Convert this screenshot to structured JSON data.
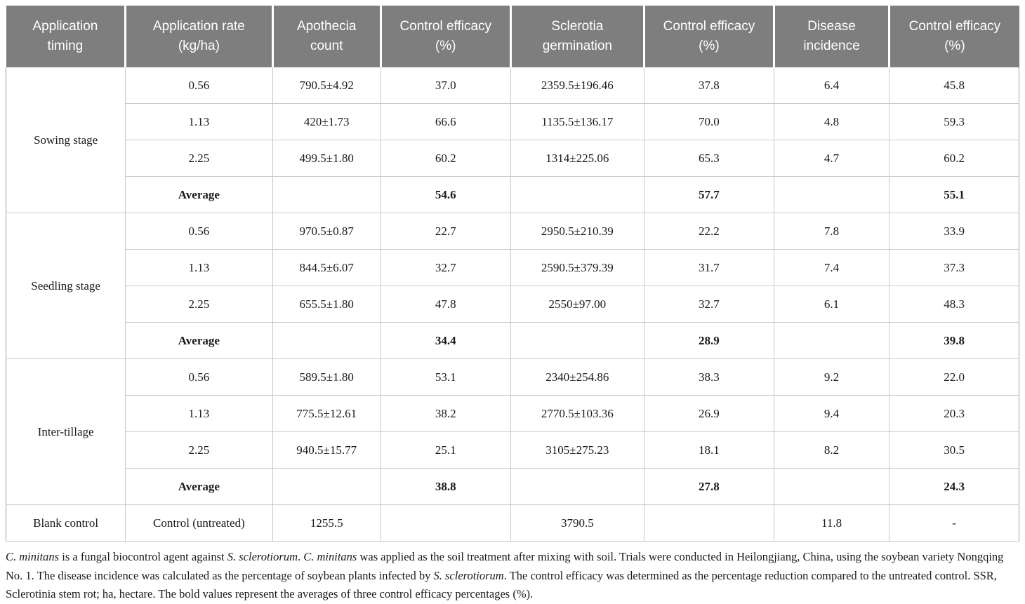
{
  "table": {
    "columns": [
      "Application timing",
      "Application rate (kg/ha)",
      "Apothecia count",
      "Control efficacy (%)",
      "Sclerotia germination",
      "Control efficacy (%)",
      "Disease incidence",
      "Control efficacy (%)"
    ],
    "column_keys": [
      "rate",
      "apothecia",
      "efficacy1",
      "sclerotia",
      "efficacy2",
      "incidence",
      "efficacy3"
    ],
    "header_bg": "#7e7e7e",
    "header_text_color": "#ffffff",
    "groups": [
      {
        "timing": "Sowing stage",
        "rows": [
          {
            "rate": "0.56",
            "apothecia": "790.5±4.92",
            "efficacy1": "37.0",
            "sclerotia": "2359.5±196.46",
            "efficacy2": "37.8",
            "incidence": "6.4",
            "efficacy3": "45.8"
          },
          {
            "rate": "1.13",
            "apothecia": "420±1.73",
            "efficacy1": "66.6",
            "sclerotia": "1135.5±136.17",
            "efficacy2": "70.0",
            "incidence": "4.8",
            "efficacy3": "59.3"
          },
          {
            "rate": "2.25",
            "apothecia": "499.5±1.80",
            "efficacy1": "60.2",
            "sclerotia": "1314±225.06",
            "efficacy2": "65.3",
            "incidence": "4.7",
            "efficacy3": "60.2"
          },
          {
            "rate": "Average",
            "bold": true,
            "apothecia": "",
            "efficacy1": "54.6",
            "sclerotia": "",
            "efficacy2": "57.7",
            "incidence": "",
            "efficacy3": "55.1"
          }
        ]
      },
      {
        "timing": "Seedling stage",
        "rows": [
          {
            "rate": "0.56",
            "apothecia": "970.5±0.87",
            "efficacy1": "22.7",
            "sclerotia": "2950.5±210.39",
            "efficacy2": "22.2",
            "incidence": "7.8",
            "efficacy3": "33.9"
          },
          {
            "rate": "1.13",
            "apothecia": "844.5±6.07",
            "efficacy1": "32.7",
            "sclerotia": "2590.5±379.39",
            "efficacy2": "31.7",
            "incidence": "7.4",
            "efficacy3": "37.3"
          },
          {
            "rate": "2.25",
            "apothecia": "655.5±1.80",
            "efficacy1": "47.8",
            "sclerotia": "2550±97.00",
            "efficacy2": "32.7",
            "incidence": "6.1",
            "efficacy3": "48.3"
          },
          {
            "rate": "Average",
            "bold": true,
            "apothecia": "",
            "efficacy1": "34.4",
            "sclerotia": "",
            "efficacy2": "28.9",
            "incidence": "",
            "efficacy3": "39.8"
          }
        ]
      },
      {
        "timing": "Inter-tillage",
        "rows": [
          {
            "rate": "0.56",
            "apothecia": "589.5±1.80",
            "efficacy1": "53.1",
            "sclerotia": "2340±254.86",
            "efficacy2": "38.3",
            "incidence": "9.2",
            "efficacy3": "22.0"
          },
          {
            "rate": "1.13",
            "apothecia": "775.5±12.61",
            "efficacy1": "38.2",
            "sclerotia": "2770.5±103.36",
            "efficacy2": "26.9",
            "incidence": "9.4",
            "efficacy3": "20.3"
          },
          {
            "rate": "2.25",
            "apothecia": "940.5±15.77",
            "efficacy1": "25.1",
            "sclerotia": "3105±275.23",
            "efficacy2": "18.1",
            "incidence": "8.2",
            "efficacy3": "30.5"
          },
          {
            "rate": "Average",
            "bold": true,
            "apothecia": "",
            "efficacy1": "38.8",
            "sclerotia": "",
            "efficacy2": "27.8",
            "incidence": "",
            "efficacy3": "24.3"
          }
        ]
      },
      {
        "timing": "Blank control",
        "rows": [
          {
            "rate": "Control (untreated)",
            "apothecia": "1255.5",
            "efficacy1": "",
            "sclerotia": "3790.5",
            "efficacy2": "",
            "incidence": "11.8",
            "efficacy3": "-"
          }
        ]
      }
    ]
  },
  "footnote": {
    "segments": [
      {
        "text": "C. minitans",
        "italic": true
      },
      {
        "text": " is a fungal biocontrol agent against ",
        "italic": false
      },
      {
        "text": "S. sclerotiorum",
        "italic": true
      },
      {
        "text": ". ",
        "italic": false
      },
      {
        "text": "C. minitans",
        "italic": true
      },
      {
        "text": " was applied as the soil treatment after mixing with soil. Trials were conducted in Heilongjiang, China, using the soybean variety Nongqing No. 1. The disease incidence was calculated as the percentage of soybean plants infected by ",
        "italic": false
      },
      {
        "text": "S. sclerotiorum",
        "italic": true
      },
      {
        "text": ". The control efficacy was determined as the percentage reduction compared to the untreated control. SSR, Sclerotinia stem rot; ha, hectare. The bold values represent the averages of three control efficacy percentages (%).",
        "italic": false
      }
    ]
  }
}
